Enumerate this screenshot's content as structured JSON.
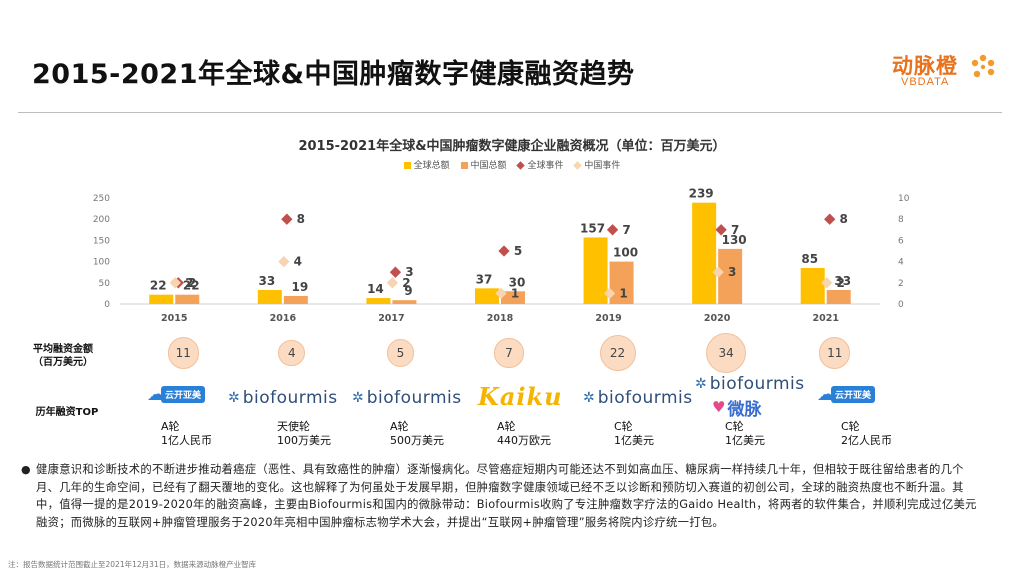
{
  "page": {
    "title": "2015-2021年全球&中国肿瘤数字健康融资趋势",
    "logo_cn": "动脉橙",
    "logo_en": "VBDATA",
    "note": "注：报告数据统计范围截止至2021年12月31日，数据来源动脉橙产业智库",
    "bullet_text": "健康意识和诊断技术的不断进步推动着癌症（恶性、具有致癌性的肿瘤）逐渐慢病化。尽管癌症短期内可能还达不到如高血压、糖尿病一样持续几十年，但相较于既往留给患者的几个月、几年的生命空间，已经有了翻天覆地的变化。这也解释了为何虽处于发展早期，但肿瘤数字健康领域已经不乏以诊断和预防切入赛道的初创公司，全球的融资热度也不断升温。其中，值得一提的是2019-2020年的融资高峰，主要由Biofourmis和国内的微脉带动：Biofourmis收购了专注肿瘤数字疗法的Gaido Health，将两者的软件集合，并顺利完成过亿美元融资；而微脉的互联网+肿瘤管理服务于2020年亮相中国肿瘤标志物学术大会，并提出“互联网+肿瘤管理”服务将院内诊疗统一打包。"
  },
  "colors": {
    "global_amount": "#ffc000",
    "china_amount": "#f4a25a",
    "global_events": "#c0504d",
    "china_events": "#f8d4b0",
    "accent": "#e8731c"
  },
  "chart_data": {
    "type": "bar",
    "title": "2015-2021年全球&中国肿瘤数字健康企业融资概况（单位：百万美元）",
    "categories": [
      "2015",
      "2016",
      "2017",
      "2018",
      "2019",
      "2020",
      "2021"
    ],
    "series": [
      {
        "name": "全球总额",
        "kind": "bar",
        "axis": "left",
        "values": [
          22,
          33,
          14,
          37,
          157,
          239,
          85
        ]
      },
      {
        "name": "中国总额",
        "kind": "bar",
        "axis": "left",
        "values": [
          22,
          19,
          9,
          30,
          100,
          130,
          33
        ]
      },
      {
        "name": "全球事件",
        "kind": "marker",
        "axis": "right",
        "values": [
          2,
          8,
          3,
          5,
          7,
          7,
          8
        ]
      },
      {
        "name": "中国事件",
        "kind": "marker",
        "axis": "right",
        "values": [
          2,
          4,
          2,
          1,
          1,
          3,
          2
        ]
      }
    ],
    "y_left": {
      "ticks": [
        0,
        50,
        100,
        150,
        200,
        250
      ],
      "lim": [
        0,
        250
      ]
    },
    "y_right": {
      "ticks": [
        0,
        2,
        4,
        6,
        8,
        10
      ],
      "lim": [
        0,
        10
      ]
    },
    "legend_position": "top-center",
    "grid": false
  },
  "avg_row": {
    "label": "平均融资金额\n（百万美元）",
    "values": [
      11,
      4,
      5,
      7,
      22,
      34,
      11
    ]
  },
  "top_row": {
    "label": "历年融资TOP",
    "companies": [
      {
        "year": "2015",
        "logo": "云开亚美",
        "round": "A轮",
        "amount": "1亿人民币"
      },
      {
        "year": "2016",
        "logo": "biofourmis",
        "round": "天使轮",
        "amount": "100万美元"
      },
      {
        "year": "2017",
        "logo": "biofourmis",
        "round": "A轮",
        "amount": "500万美元"
      },
      {
        "year": "2018",
        "logo": "Kaiku",
        "round": "A轮",
        "amount": "440万欧元"
      },
      {
        "year": "2019",
        "logo": "biofourmis",
        "round": "C轮",
        "amount": "1亿美元"
      },
      {
        "year": "2020",
        "logo": "biofourmis",
        "logo2": "微脉",
        "round": "C轮",
        "amount": "1亿美元"
      },
      {
        "year": "2021",
        "logo": "云开亚美",
        "round": "C轮",
        "amount": "2亿人民币"
      }
    ]
  }
}
